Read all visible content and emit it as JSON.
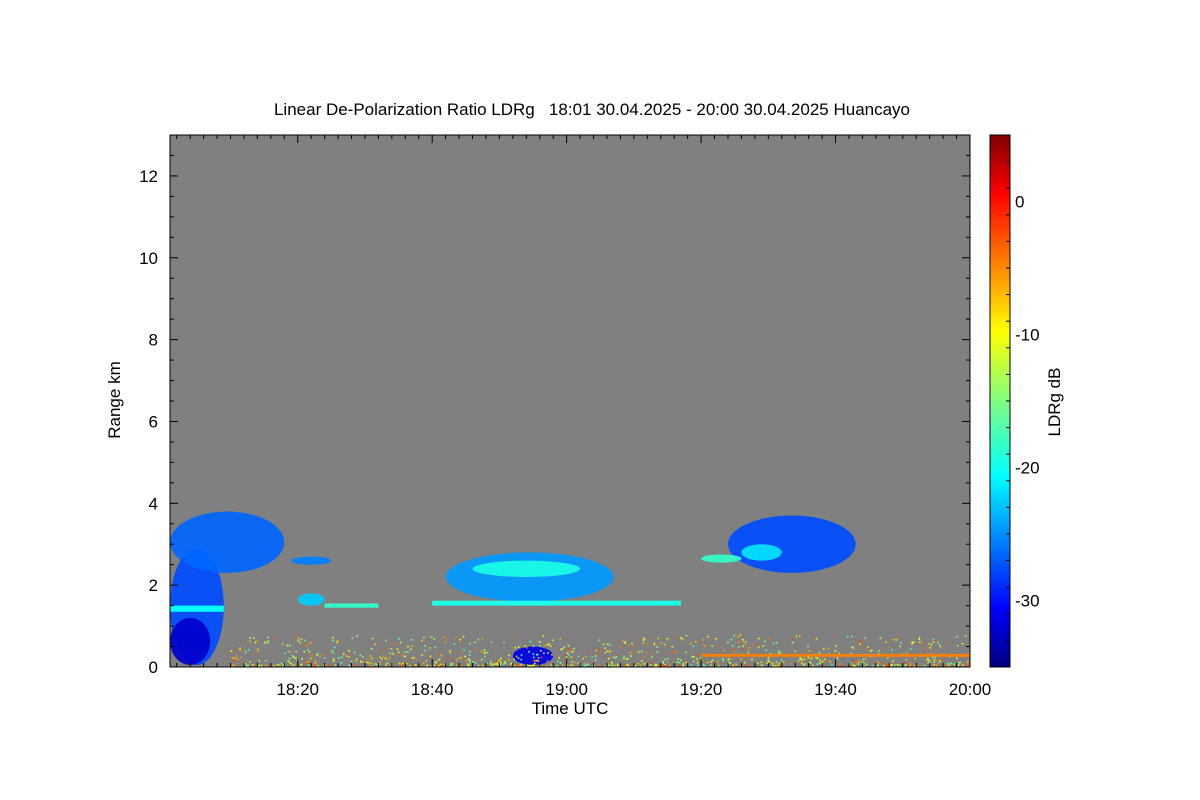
{
  "chart_data": {
    "type": "heatmap",
    "title": "Linear De-Polarization Ratio LDRg   18:01 30.04.2025 - 20:00 30.04.2025 Huancayo",
    "xlabel": "Time UTC",
    "ylabel": "Range km",
    "x_unit": "minutes after 18:00 UTC",
    "xlim": [
      1,
      120
    ],
    "ylim": [
      0,
      13
    ],
    "x_ticks": [
      {
        "value": 20,
        "label": "18:20"
      },
      {
        "value": 40,
        "label": "18:40"
      },
      {
        "value": 60,
        "label": "19:00"
      },
      {
        "value": 80,
        "label": "19:20"
      },
      {
        "value": 100,
        "label": "19:40"
      },
      {
        "value": 120,
        "label": "20:00"
      }
    ],
    "y_ticks": [
      {
        "value": 0,
        "label": "0"
      },
      {
        "value": 2,
        "label": "2"
      },
      {
        "value": 4,
        "label": "4"
      },
      {
        "value": 6,
        "label": "6"
      },
      {
        "value": 8,
        "label": "8"
      },
      {
        "value": 10,
        "label": "10"
      },
      {
        "value": 12,
        "label": "12"
      }
    ],
    "colorbar": {
      "label": "LDRg dB",
      "range": [
        -35,
        5
      ],
      "ticks": [
        {
          "value": 0,
          "label": "0"
        },
        {
          "value": -10,
          "label": "-10"
        },
        {
          "value": -20,
          "label": "-20"
        },
        {
          "value": -30,
          "label": "-30"
        }
      ],
      "colormap": "jet"
    },
    "background_color": "#808080",
    "regions": [
      {
        "name": "low-level-layer-start",
        "t": [
          1,
          9
        ],
        "r": [
          0.05,
          2.9
        ],
        "ldr": -27
      },
      {
        "name": "near-ground-strong",
        "t": [
          1,
          7
        ],
        "r": [
          0.05,
          1.2
        ],
        "ldr": -32
      },
      {
        "name": "thin-line-1.4km",
        "t": [
          1,
          9
        ],
        "r": [
          1.35,
          1.5
        ],
        "ldr": -20
      },
      {
        "name": "sloping-cloud",
        "t": [
          1,
          18
        ],
        "r": [
          2.3,
          3.8
        ],
        "ldr": -26
      },
      {
        "name": "cloud-18:20",
        "t": [
          19,
          25
        ],
        "r": [
          2.5,
          2.7
        ],
        "ldr": -25
      },
      {
        "name": "small-cloud-18:21",
        "t": [
          20,
          24
        ],
        "r": [
          1.5,
          1.8
        ],
        "ldr": -22
      },
      {
        "name": "thin-layer-18:25",
        "t": [
          24,
          32
        ],
        "r": [
          1.45,
          1.55
        ],
        "ldr": -18
      },
      {
        "name": "cloud-18:50",
        "t": [
          42,
          67
        ],
        "r": [
          1.6,
          2.8
        ],
        "ldr": -24
      },
      {
        "name": "cloud-18:50-core",
        "t": [
          46,
          62
        ],
        "r": [
          2.2,
          2.6
        ],
        "ldr": -19
      },
      {
        "name": "layer-1.5km",
        "t": [
          40,
          77
        ],
        "r": [
          1.5,
          1.62
        ],
        "ldr": -19
      },
      {
        "name": "ground-blob-19:00",
        "t": [
          52,
          58
        ],
        "r": [
          0.05,
          0.5
        ],
        "ldr": -31
      },
      {
        "name": "cloud-19:30",
        "t": [
          84,
          103
        ],
        "r": [
          2.3,
          3.7
        ],
        "ldr": -27
      },
      {
        "name": "cloud-19:30-core",
        "t": [
          86,
          92
        ],
        "r": [
          2.6,
          3.0
        ],
        "ldr": -21
      },
      {
        "name": "small-layer-19:21",
        "t": [
          80,
          86
        ],
        "r": [
          2.55,
          2.75
        ],
        "ldr": -18
      },
      {
        "name": "near-ground-clutter",
        "t": [
          10,
          120
        ],
        "r": [
          0.05,
          0.8
        ],
        "ldr": -10
      },
      {
        "name": "ground-line-0.3km",
        "t": [
          80,
          120
        ],
        "r": [
          0.25,
          0.32
        ],
        "ldr": -5
      }
    ]
  }
}
